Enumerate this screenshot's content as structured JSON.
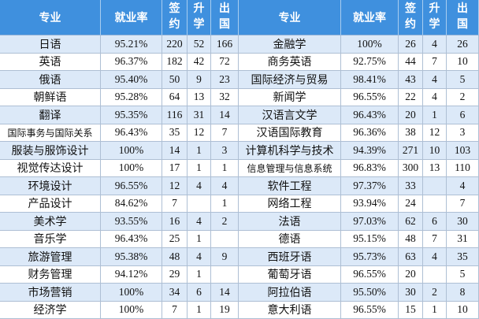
{
  "table": {
    "header": {
      "left": {
        "major": "专业",
        "employment_rate": "就业率",
        "signed": "签约",
        "further_study": "升学",
        "abroad": "出国"
      },
      "right": {
        "major": "专业",
        "employment_rate": "就业率",
        "signed": "签约",
        "further_study": "升学",
        "abroad": "出国"
      }
    },
    "rows": [
      {
        "left": {
          "major": "日语",
          "employment_rate": "95.21%",
          "signed": 220,
          "further_study": 52,
          "abroad": 166
        },
        "right": {
          "major": "金融学",
          "employment_rate": "100%",
          "signed": 26,
          "further_study": 4,
          "abroad": 26
        }
      },
      {
        "left": {
          "major": "英语",
          "employment_rate": "96.37%",
          "signed": 182,
          "further_study": 42,
          "abroad": 72
        },
        "right": {
          "major": "商务英语",
          "employment_rate": "92.75%",
          "signed": 44,
          "further_study": 7,
          "abroad": 10
        }
      },
      {
        "left": {
          "major": "俄语",
          "employment_rate": "95.40%",
          "signed": 50,
          "further_study": 9,
          "abroad": 23
        },
        "right": {
          "major": "国际经济与贸易",
          "employment_rate": "98.41%",
          "signed": 43,
          "further_study": 4,
          "abroad": 5
        }
      },
      {
        "left": {
          "major": "朝鲜语",
          "employment_rate": "95.28%",
          "signed": 64,
          "further_study": 13,
          "abroad": 32
        },
        "right": {
          "major": "新闻学",
          "employment_rate": "96.55%",
          "signed": 22,
          "further_study": 4,
          "abroad": 2
        }
      },
      {
        "left": {
          "major": "翻译",
          "employment_rate": "95.35%",
          "signed": 116,
          "further_study": 31,
          "abroad": 14
        },
        "right": {
          "major": "汉语言文学",
          "employment_rate": "96.43%",
          "signed": 20,
          "further_study": 1,
          "abroad": 6
        }
      },
      {
        "left": {
          "major": "国际事务与国际关系",
          "employment_rate": "96.43%",
          "signed": 35,
          "further_study": 12,
          "abroad": 7
        },
        "right": {
          "major": "汉语国际教育",
          "employment_rate": "96.36%",
          "signed": 38,
          "further_study": 12,
          "abroad": 3
        }
      },
      {
        "left": {
          "major": "服装与服饰设计",
          "employment_rate": "100%",
          "signed": 14,
          "further_study": 1,
          "abroad": 3
        },
        "right": {
          "major": "计算机科学与技术",
          "employment_rate": "94.39%",
          "signed": 271,
          "further_study": 10,
          "abroad": 103
        }
      },
      {
        "left": {
          "major": "视觉传达设计",
          "employment_rate": "100%",
          "signed": 17,
          "further_study": 1,
          "abroad": 1
        },
        "right": {
          "major": "信息管理与信息系统",
          "employment_rate": "96.83%",
          "signed": 300,
          "further_study": 13,
          "abroad": 110
        }
      },
      {
        "left": {
          "major": "环境设计",
          "employment_rate": "96.55%",
          "signed": 12,
          "further_study": 4,
          "abroad": 4
        },
        "right": {
          "major": "软件工程",
          "employment_rate": "97.37%",
          "signed": 33,
          "further_study": null,
          "abroad": 4
        }
      },
      {
        "left": {
          "major": "产品设计",
          "employment_rate": "84.62%",
          "signed": 7,
          "further_study": null,
          "abroad": 1
        },
        "right": {
          "major": "网络工程",
          "employment_rate": "93.94%",
          "signed": 24,
          "further_study": null,
          "abroad": 7
        }
      },
      {
        "left": {
          "major": "美术学",
          "employment_rate": "93.55%",
          "signed": 16,
          "further_study": 4,
          "abroad": 2
        },
        "right": {
          "major": "法语",
          "employment_rate": "97.03%",
          "signed": 62,
          "further_study": 6,
          "abroad": 30
        }
      },
      {
        "left": {
          "major": "音乐学",
          "employment_rate": "96.43%",
          "signed": 25,
          "further_study": 1,
          "abroad": null
        },
        "right": {
          "major": "德语",
          "employment_rate": "95.15%",
          "signed": 48,
          "further_study": 7,
          "abroad": 31
        }
      },
      {
        "left": {
          "major": "旅游管理",
          "employment_rate": "95.38%",
          "signed": 48,
          "further_study": 4,
          "abroad": 9
        },
        "right": {
          "major": "西班牙语",
          "employment_rate": "95.73%",
          "signed": 63,
          "further_study": 4,
          "abroad": 35
        }
      },
      {
        "left": {
          "major": "财务管理",
          "employment_rate": "94.12%",
          "signed": 29,
          "further_study": 1,
          "abroad": null
        },
        "right": {
          "major": "葡萄牙语",
          "employment_rate": "96.55%",
          "signed": 20,
          "further_study": null,
          "abroad": 5
        }
      },
      {
        "left": {
          "major": "市场营销",
          "employment_rate": "100%",
          "signed": 34,
          "further_study": 6,
          "abroad": 14
        },
        "right": {
          "major": "阿拉伯语",
          "employment_rate": "95.50%",
          "signed": 30,
          "further_study": 2,
          "abroad": 8
        }
      },
      {
        "left": {
          "major": "经济学",
          "employment_rate": "100%",
          "signed": 7,
          "further_study": 1,
          "abroad": 19
        },
        "right": {
          "major": "意大利语",
          "employment_rate": "96.55%",
          "signed": 15,
          "further_study": 1,
          "abroad": 10
        }
      }
    ]
  },
  "colors": {
    "header_bg": "#3f90de",
    "header_text": "#ffffff",
    "stripe_row": "#dce9f8",
    "plain_row": "#ffffff",
    "grid_line": "#aebfd4"
  }
}
